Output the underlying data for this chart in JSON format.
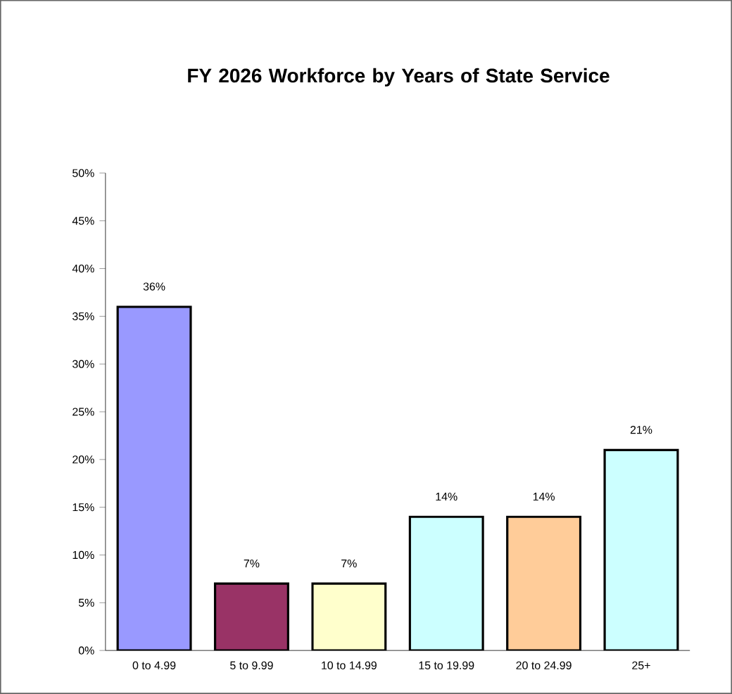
{
  "chart_data": {
    "type": "bar",
    "title": "FY 2026 Workforce by Years of State Service",
    "categories": [
      "0 to 4.99",
      "5 to 9.99",
      "10 to 14.99",
      "15 to 19.99",
      "20 to 24.99",
      "25+"
    ],
    "values": [
      36,
      7,
      7,
      14,
      14,
      21
    ],
    "value_labels": [
      "36%",
      "7%",
      "7%",
      "14%",
      "14%",
      "21%"
    ],
    "colors": [
      "#9999ff",
      "#993366",
      "#ffffcc",
      "#ccffff",
      "#ffcc99",
      "#ccffff"
    ],
    "ylim": [
      0,
      50
    ],
    "yticks": [
      {
        "value": 0,
        "label": "0%"
      },
      {
        "value": 5,
        "label": "5%"
      },
      {
        "value": 10,
        "label": "10%"
      },
      {
        "value": 15,
        "label": "15%"
      },
      {
        "value": 20,
        "label": "20%"
      },
      {
        "value": 25,
        "label": "25%"
      },
      {
        "value": 30,
        "label": "30%"
      },
      {
        "value": 35,
        "label": "35%"
      },
      {
        "value": 40,
        "label": "40%"
      },
      {
        "value": 45,
        "label": "45%"
      },
      {
        "value": 50,
        "label": "50%"
      }
    ],
    "grid": false
  }
}
